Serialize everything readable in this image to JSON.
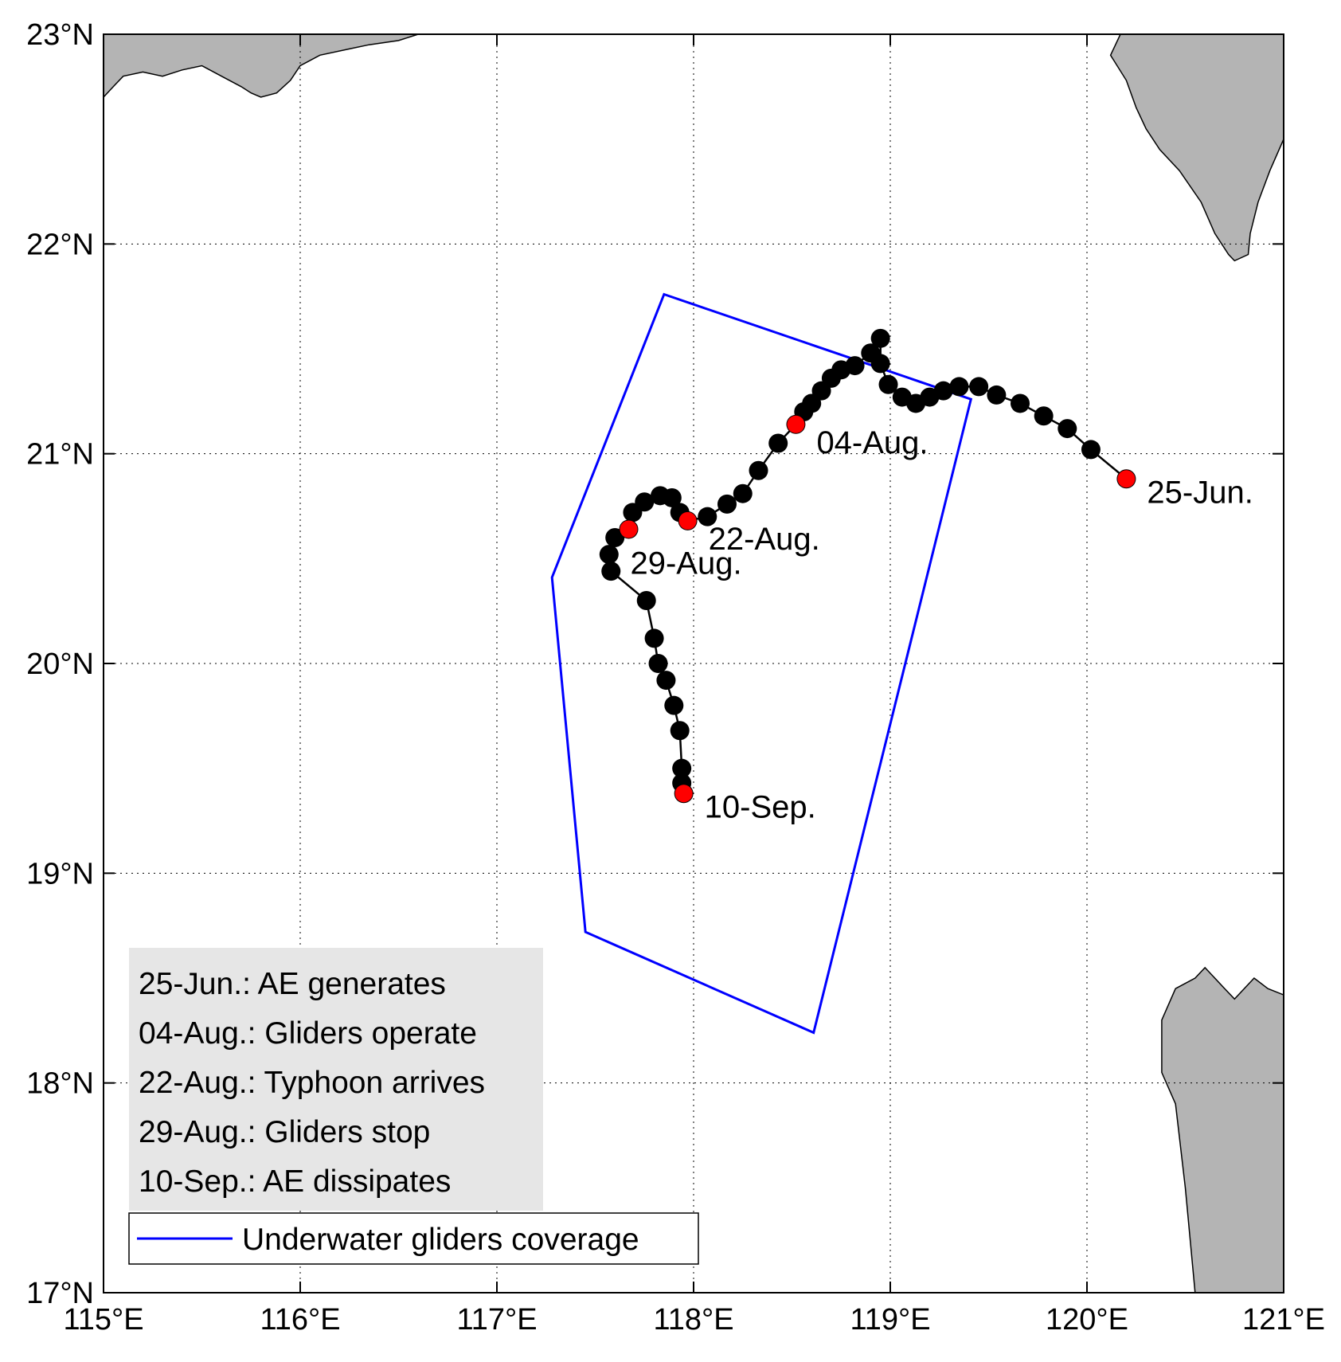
{
  "map": {
    "lon_range": [
      115,
      121
    ],
    "lat_range": [
      17,
      23
    ],
    "grid": "dotted",
    "lon_ticks": [
      {
        "value": 115,
        "label": "115°E"
      },
      {
        "value": 116,
        "label": "116°E"
      },
      {
        "value": 117,
        "label": "117°E"
      },
      {
        "value": 118,
        "label": "118°E"
      },
      {
        "value": 119,
        "label": "119°E"
      },
      {
        "value": 120,
        "label": "120°E"
      },
      {
        "value": 121,
        "label": "121°E"
      }
    ],
    "lat_ticks": [
      {
        "value": 17,
        "label": "17°N"
      },
      {
        "value": 18,
        "label": "18°N"
      },
      {
        "value": 19,
        "label": "19°N"
      },
      {
        "value": 20,
        "label": "20°N"
      },
      {
        "value": 21,
        "label": "21°N"
      },
      {
        "value": 22,
        "label": "22°N"
      },
      {
        "value": 23,
        "label": "23°N"
      }
    ],
    "land_color": "#b4b4b4",
    "track_color": "#000000",
    "event_color": "#ff0000",
    "coverage_color": "#0000ff",
    "land": {
      "china_coast": [
        [
          115,
          22.7
        ],
        [
          115.05,
          22.75
        ],
        [
          115.1,
          22.8
        ],
        [
          115.2,
          22.82
        ],
        [
          115.3,
          22.8
        ],
        [
          115.4,
          22.83
        ],
        [
          115.5,
          22.85
        ],
        [
          115.6,
          22.8
        ],
        [
          115.7,
          22.75
        ],
        [
          115.75,
          22.72
        ],
        [
          115.8,
          22.7
        ],
        [
          115.88,
          22.72
        ],
        [
          115.95,
          22.78
        ],
        [
          116.0,
          22.85
        ],
        [
          116.1,
          22.9
        ],
        [
          116.25,
          22.93
        ],
        [
          116.35,
          22.95
        ],
        [
          116.5,
          22.97
        ],
        [
          116.6,
          23.0
        ],
        [
          115,
          23.0
        ]
      ],
      "taiwan": [
        [
          120.17,
          23.0
        ],
        [
          120.12,
          22.9
        ],
        [
          120.2,
          22.78
        ],
        [
          120.25,
          22.65
        ],
        [
          120.3,
          22.55
        ],
        [
          120.37,
          22.45
        ],
        [
          120.47,
          22.35
        ],
        [
          120.58,
          22.2
        ],
        [
          120.65,
          22.05
        ],
        [
          120.72,
          21.95
        ],
        [
          120.75,
          21.92
        ],
        [
          120.82,
          21.95
        ],
        [
          120.83,
          22.05
        ],
        [
          120.87,
          22.2
        ],
        [
          120.93,
          22.35
        ],
        [
          121.0,
          22.5
        ],
        [
          121.0,
          23.0
        ]
      ],
      "luzon": [
        [
          120.55,
          17.0
        ],
        [
          120.5,
          17.5
        ],
        [
          120.45,
          17.9
        ],
        [
          120.38,
          18.05
        ],
        [
          120.38,
          18.3
        ],
        [
          120.45,
          18.45
        ],
        [
          120.55,
          18.5
        ],
        [
          120.6,
          18.55
        ],
        [
          120.7,
          18.45
        ],
        [
          120.75,
          18.4
        ],
        [
          120.85,
          18.5
        ],
        [
          120.92,
          18.45
        ],
        [
          121.0,
          18.42
        ],
        [
          121.0,
          17.0
        ]
      ]
    },
    "coverage_polygon": [
      [
        117.85,
        21.76
      ],
      [
        119.41,
        21.26
      ],
      [
        118.61,
        18.24
      ],
      [
        117.45,
        18.72
      ],
      [
        117.28,
        20.41
      ]
    ],
    "track": [
      [
        120.2,
        20.88
      ],
      [
        120.02,
        21.02
      ],
      [
        119.9,
        21.12
      ],
      [
        119.78,
        21.18
      ],
      [
        119.66,
        21.24
      ],
      [
        119.54,
        21.28
      ],
      [
        119.45,
        21.32
      ],
      [
        119.35,
        21.32
      ],
      [
        119.27,
        21.3
      ],
      [
        119.2,
        21.27
      ],
      [
        119.13,
        21.24
      ],
      [
        119.06,
        21.27
      ],
      [
        118.99,
        21.33
      ],
      [
        118.95,
        21.43
      ],
      [
        118.95,
        21.55
      ],
      [
        118.9,
        21.48
      ],
      [
        118.82,
        21.42
      ],
      [
        118.75,
        21.4
      ],
      [
        118.7,
        21.36
      ],
      [
        118.65,
        21.3
      ],
      [
        118.6,
        21.24
      ],
      [
        118.56,
        21.2
      ],
      [
        118.52,
        21.14
      ],
      [
        118.43,
        21.05
      ],
      [
        118.33,
        20.92
      ],
      [
        118.25,
        20.81
      ],
      [
        118.17,
        20.76
      ],
      [
        118.07,
        20.7
      ],
      [
        117.97,
        20.68
      ],
      [
        117.93,
        20.72
      ],
      [
        117.89,
        20.79
      ],
      [
        117.83,
        20.8
      ],
      [
        117.75,
        20.77
      ],
      [
        117.69,
        20.72
      ],
      [
        117.67,
        20.64
      ],
      [
        117.6,
        20.6
      ],
      [
        117.57,
        20.52
      ],
      [
        117.58,
        20.44
      ],
      [
        117.76,
        20.3
      ],
      [
        117.8,
        20.12
      ],
      [
        117.82,
        20.0
      ],
      [
        117.86,
        19.92
      ],
      [
        117.9,
        19.8
      ],
      [
        117.93,
        19.68
      ],
      [
        117.94,
        19.5
      ],
      [
        117.94,
        19.43
      ],
      [
        117.95,
        19.38
      ]
    ],
    "events": [
      {
        "lon": 120.2,
        "lat": 20.88,
        "label": "25-Jun.",
        "anchor": "right"
      },
      {
        "lon": 118.52,
        "lat": 21.14,
        "label": "04-Aug.",
        "anchor": "lowright"
      },
      {
        "lon": 117.97,
        "lat": 20.68,
        "label": "22-Aug.",
        "anchor": "lowright"
      },
      {
        "lon": 117.67,
        "lat": 20.64,
        "label": "29-Aug.",
        "anchor": "low"
      },
      {
        "lon": 117.95,
        "lat": 19.38,
        "label": "10-Sep.",
        "anchor": "right"
      }
    ]
  },
  "legend": {
    "events": [
      "25-Jun.: AE generates",
      "04-Aug.: Gliders operate",
      "22-Aug.: Typhoon arrives",
      "29-Aug.: Gliders stop",
      "10-Sep.: AE dissipates"
    ],
    "coverage_label": "Underwater gliders coverage"
  }
}
